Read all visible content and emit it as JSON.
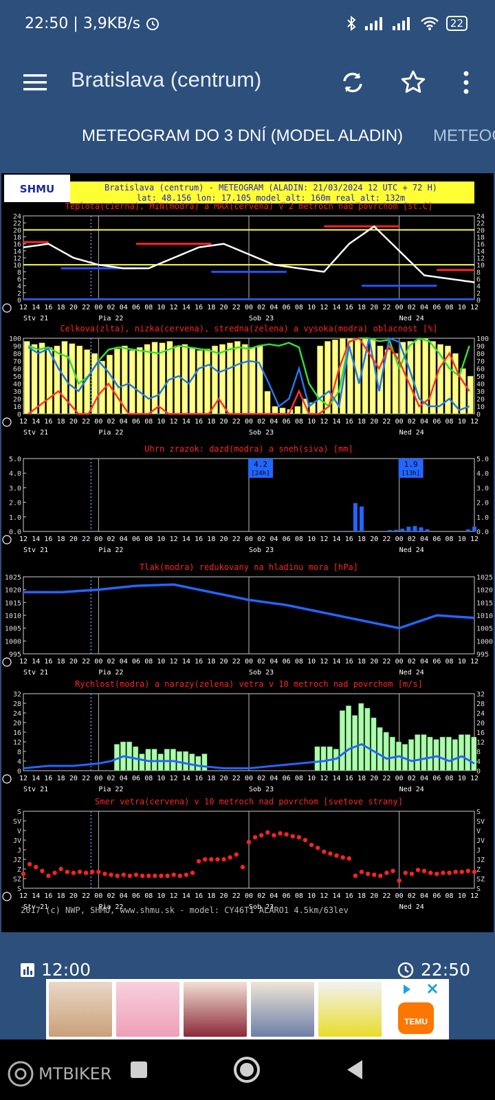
{
  "status_bar": {
    "time": "22:50",
    "speed": "3,9KB/s",
    "battery": "22"
  },
  "app_bar": {
    "title": "Bratislava (centrum)"
  },
  "tabs": [
    {
      "label": "METEOGRAM DO 3 DNÍ (MODEL ALADIN)"
    },
    {
      "label": "METEOG"
    }
  ],
  "meteogram": {
    "logo": "SHMU",
    "header_line1": "Bratislava (centrum) - METEOGRAM (ALADIN: 21/03/2024 12 UTC + 72 H)",
    "header_line2": "lat: 48.156   lon: 17.105   model_alt: 160m  real_alt: 132m",
    "hour_labels": [
      "12",
      "14",
      "16",
      "18",
      "20",
      "22",
      "00",
      "02",
      "04",
      "06",
      "08",
      "10",
      "12",
      "14",
      "16",
      "18",
      "20",
      "22",
      "00",
      "02",
      "04",
      "06",
      "08",
      "10",
      "12",
      "14",
      "16",
      "18",
      "20",
      "22",
      "00",
      "02",
      "04",
      "06",
      "08",
      "10",
      "12"
    ],
    "day_labels": [
      "Stv 21",
      "Pia 22",
      "Sob 23",
      "Ned 24"
    ],
    "panels": {
      "temp": {
        "title": "Teplota(cierna), MIN(modra) a MAX(cervena) v 2 metroch nad povrchom [st.C]",
        "ticks": [
          "24",
          "22",
          "20",
          "18",
          "16",
          "14",
          "12",
          "10",
          "8",
          "6",
          "4",
          "2",
          "0"
        ]
      },
      "cloud": {
        "title": "Celkova(zlta), nizka(cervena), stredna(zelena) a vysoka(modra) oblacnost [%]",
        "ticks": [
          "100",
          "90",
          "80",
          "70",
          "60",
          "50",
          "40",
          "30",
          "20",
          "10",
          "0"
        ]
      },
      "precip": {
        "title": "Uhrn zrazok: dazd(modra) a sneh(siva) [mm]",
        "ticks": [
          "5.0",
          "4.0",
          "3.0",
          "2.0",
          "1.0",
          "0.0"
        ],
        "box1_value": "4.2",
        "box1_period": "[24h]",
        "box2_value": "1.9",
        "box2_period": "[13h]"
      },
      "pressure": {
        "title": "Tlak(modra) redukovany na hladinu mora [hPa]",
        "ticks": [
          "1025",
          "1020",
          "1015",
          "1010",
          "1005",
          "1000",
          "995"
        ]
      },
      "wind": {
        "title": "Rychlost(modra) a narazy(zelena) vetra v 10 metroch nad povrchom [m/s]",
        "ticks": [
          "32",
          "28",
          "24",
          "20",
          "16",
          "12",
          "8",
          "4",
          "0"
        ]
      },
      "direction": {
        "title": "Smer vetra(cervena) v 10 metroch nad povrchom [svetove strany]",
        "ticks": [
          "S",
          "SV",
          "V",
          "JV",
          "J",
          "JZ",
          "Z",
          "SZ",
          "S"
        ]
      }
    },
    "footer": "2017 (c) NWP, SHMU, www.shmu.sk - model: CY46T1 ALARO1 4.5km/63lev"
  },
  "bottom_bar": {
    "left_time": "12:00",
    "right_time": "22:50"
  },
  "watermark": "MTBIKER",
  "chart_data": [
    {
      "type": "line",
      "title": "Teplota(cierna), MIN(modra) a MAX(cervena) v 2 metroch nad povrchom [st.C]",
      "x_hours": [
        0,
        4,
        8,
        12,
        16,
        20,
        24,
        28,
        32,
        36,
        40,
        44,
        48,
        52,
        56,
        60,
        64,
        68,
        72
      ],
      "series": [
        {
          "values": [
            15,
            16,
            12,
            10,
            9,
            9,
            12,
            15,
            16,
            13,
            10,
            9,
            8,
            16,
            21,
            14,
            7,
            6,
            5
          ]
        }
      ],
      "ylim": [
        0,
        24
      ]
    },
    {
      "type": "line",
      "title": "Tlak(modra) redukovany na hladinu mora [hPa]",
      "x_hours": [
        0,
        6,
        12,
        18,
        24,
        30,
        36,
        42,
        48,
        54,
        60,
        66,
        72
      ],
      "series": [
        {
          "values": [
            1019,
            1019,
            1020,
            1021.5,
            1022,
            1019,
            1016,
            1014,
            1011,
            1008,
            1005,
            1010,
            1009
          ]
        }
      ],
      "ylim": [
        995,
        1025
      ]
    }
  ]
}
